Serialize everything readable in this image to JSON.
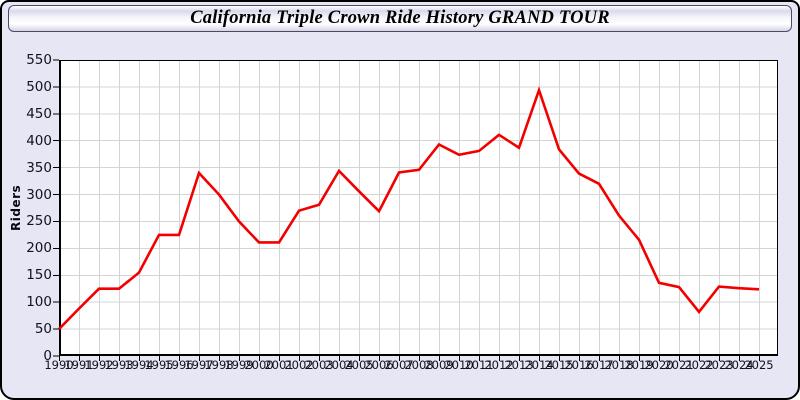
{
  "window": {
    "title": "California Triple Crown Ride History GRAND TOUR",
    "background": "#e6e6f5",
    "border_color": "#000000"
  },
  "chart_data": {
    "type": "line",
    "title": "California Triple Crown Ride History GRAND TOUR",
    "ylabel": "Riders",
    "xlabel": "",
    "x": [
      1990,
      1991,
      1992,
      1993,
      1994,
      1995,
      1996,
      1997,
      1998,
      1999,
      2000,
      2001,
      2002,
      2003,
      2004,
      2005,
      2006,
      2007,
      2008,
      2009,
      2010,
      2011,
      2012,
      2013,
      2014,
      2015,
      2016,
      2017,
      2018,
      2019,
      2020,
      2021,
      2022,
      2023,
      2024,
      2025
    ],
    "series": [
      {
        "name": "Riders",
        "color": "#f20000",
        "values": [
          50,
          88,
          125,
          125,
          155,
          225,
          225,
          340,
          300,
          250,
          211,
          211,
          270,
          281,
          344,
          306,
          269,
          341,
          346,
          393,
          374,
          381,
          411,
          387,
          494,
          384,
          339,
          320,
          261,
          216,
          136,
          128,
          82,
          129,
          126,
          124
        ]
      }
    ],
    "ylim": [
      0,
      550
    ],
    "ytick_step": 50,
    "xtick_step": 1,
    "grid": true,
    "legend": false,
    "plot_background": "#ffffff",
    "gridline_color": "#d4d4d4",
    "axis_color": "#000000",
    "tick_label_color": "#13131c"
  }
}
